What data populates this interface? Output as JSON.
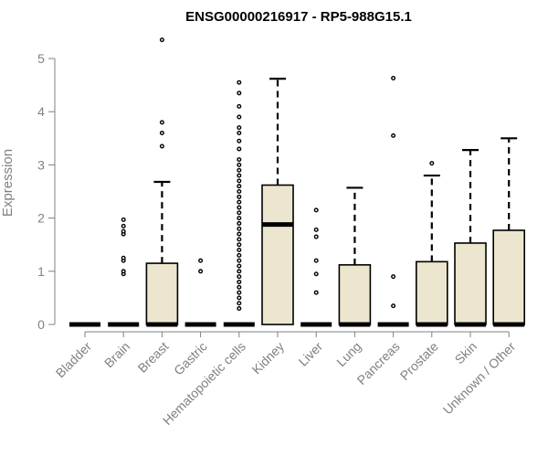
{
  "chart_data": {
    "type": "box",
    "title": "ENSG00000216917 - RP5-988G15.1",
    "xlabel": "",
    "ylabel": "Expression",
    "ylim": [
      0,
      5.4
    ],
    "yticks": [
      0,
      1,
      2,
      3,
      4,
      5
    ],
    "ytick_labels": [
      "0",
      "1",
      "2",
      "3",
      "4",
      "5"
    ],
    "box_fill": "#ede6cf",
    "grid": false,
    "categories": [
      "Bladder",
      "Brain",
      "Breast",
      "Gastric",
      "Hematopoietic cells",
      "Kidney",
      "Liver",
      "Lung",
      "Pancreas",
      "Prostate",
      "Skin",
      "Unknown / Other"
    ],
    "boxes": [
      {
        "q1": 0,
        "median": 0,
        "q3": 0,
        "whisker_low": 0,
        "whisker_high": 0,
        "outliers": []
      },
      {
        "q1": 0,
        "median": 0,
        "q3": 0,
        "whisker_low": 0,
        "whisker_high": 0,
        "outliers": [
          0.95,
          1.0,
          1.2,
          1.25,
          1.7,
          1.75,
          1.85,
          1.97
        ]
      },
      {
        "q1": 0,
        "median": 0,
        "q3": 1.15,
        "whisker_low": 0,
        "whisker_high": 2.68,
        "outliers": [
          3.35,
          3.6,
          3.8,
          5.35
        ]
      },
      {
        "q1": 0,
        "median": 0,
        "q3": 0,
        "whisker_low": 0,
        "whisker_high": 0,
        "outliers": [
          1.0,
          1.2
        ]
      },
      {
        "q1": 0,
        "median": 0,
        "q3": 0,
        "whisker_low": 0,
        "whisker_high": 0,
        "outliers": [
          0.3,
          0.4,
          0.5,
          0.6,
          0.7,
          0.8,
          0.9,
          1.0,
          1.1,
          1.2,
          1.3,
          1.4,
          1.5,
          1.6,
          1.7,
          1.8,
          1.9,
          2.0,
          2.1,
          2.2,
          2.3,
          2.4,
          2.5,
          2.6,
          2.7,
          2.8,
          2.9,
          3.0,
          3.1,
          3.3,
          3.45,
          3.6,
          3.7,
          3.9,
          4.1,
          4.35,
          4.55
        ]
      },
      {
        "q1": 0,
        "median": 1.88,
        "q3": 2.62,
        "whisker_low": 0,
        "whisker_high": 4.62,
        "outliers": []
      },
      {
        "q1": 0,
        "median": 0,
        "q3": 0,
        "whisker_low": 0,
        "whisker_high": 0,
        "outliers": [
          0.6,
          0.95,
          1.2,
          1.65,
          1.78,
          2.15
        ]
      },
      {
        "q1": 0,
        "median": 0,
        "q3": 1.12,
        "whisker_low": 0,
        "whisker_high": 2.57,
        "outliers": []
      },
      {
        "q1": 0,
        "median": 0,
        "q3": 0,
        "whisker_low": 0,
        "whisker_high": 0,
        "outliers": [
          0.35,
          0.9,
          3.55,
          4.63
        ]
      },
      {
        "q1": 0,
        "median": 0,
        "q3": 1.18,
        "whisker_low": 0,
        "whisker_high": 2.8,
        "outliers": [
          3.03
        ]
      },
      {
        "q1": 0,
        "median": 0,
        "q3": 1.53,
        "whisker_low": 0,
        "whisker_high": 3.28,
        "outliers": []
      },
      {
        "q1": 0,
        "median": 0,
        "q3": 1.77,
        "whisker_low": 0,
        "whisker_high": 3.5,
        "outliers": []
      }
    ]
  }
}
